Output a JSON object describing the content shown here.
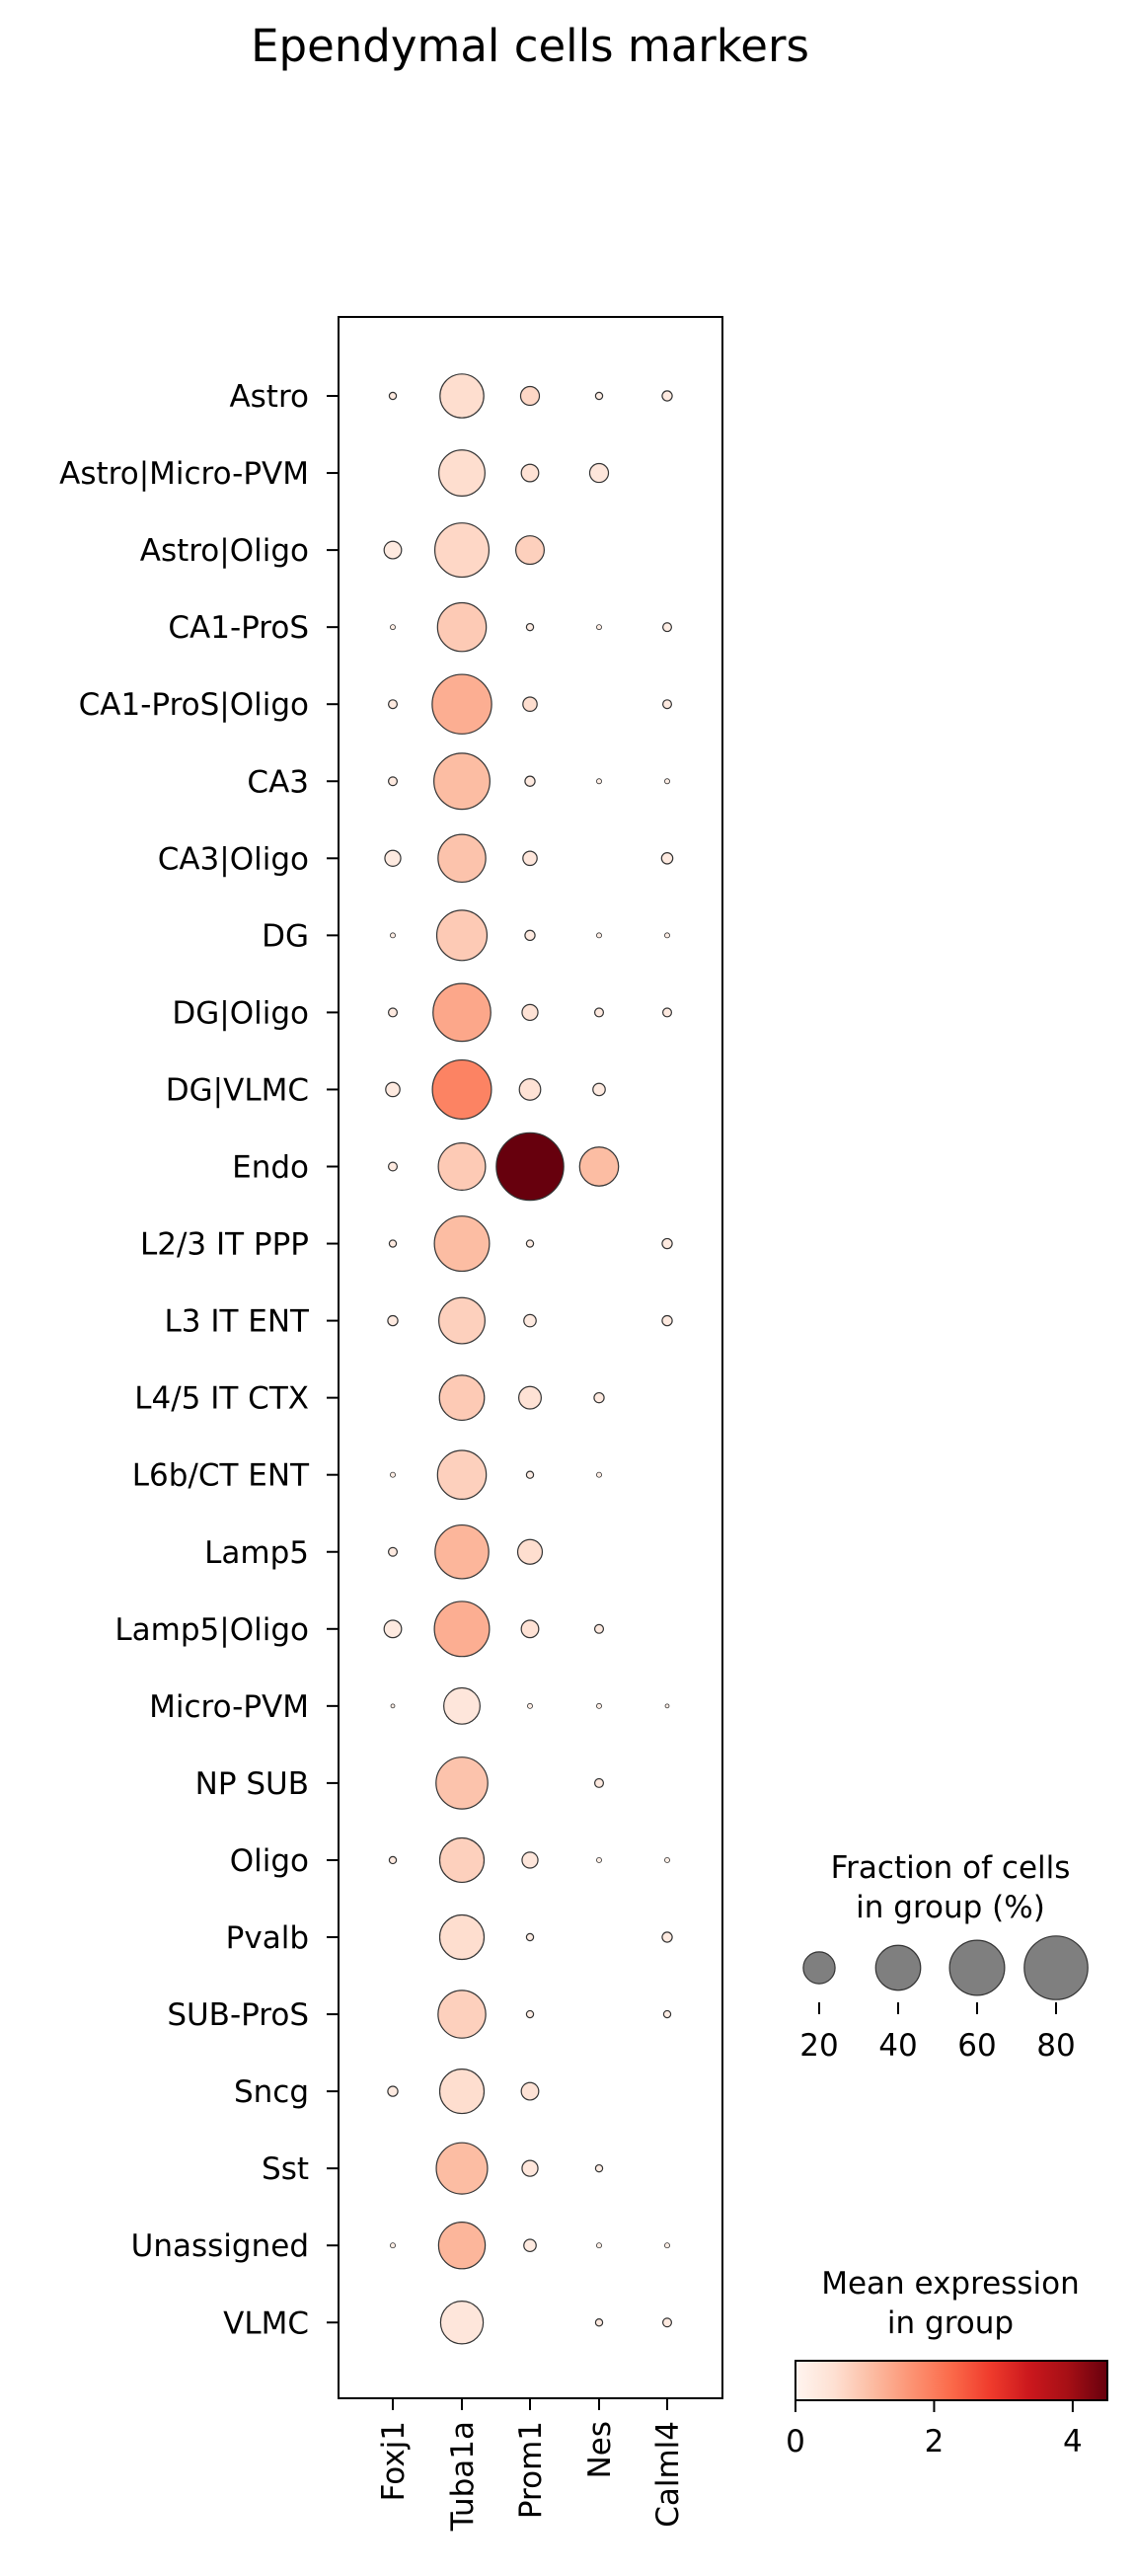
{
  "chart_data": {
    "type": "dotplot",
    "title": "Ependymal cells markers",
    "genes": [
      "Foxj1",
      "Tuba1a",
      "Prom1",
      "Nes",
      "Calml4"
    ],
    "groups": [
      "Astro",
      "Astro|Micro-PVM",
      "Astro|Oligo",
      "CA1-ProS",
      "CA1-ProS|Oligo",
      "CA3",
      "CA3|Oligo",
      "DG",
      "DG|Oligo",
      "DG|VLMC",
      "Endo",
      "L2/3 IT PPP",
      "L3 IT ENT",
      "L4/5 IT CTX",
      "L6b/CT ENT",
      "Lamp5",
      "Lamp5|Oligo",
      "Micro-PVM",
      "NP SUB",
      "Oligo",
      "Pvalb",
      "SUB-ProS",
      "Sncg",
      "Sst",
      "Unassigned",
      "VLMC"
    ],
    "fraction_pct": [
      [
        1,
        38,
        7,
        1,
        2
      ],
      [
        0,
        42,
        6,
        7,
        0
      ],
      [
        6,
        58,
        16,
        0,
        0
      ],
      [
        0.5,
        47,
        1,
        0.5,
        1.5
      ],
      [
        1.5,
        70,
        4,
        0,
        1.5
      ],
      [
        1.5,
        62,
        2,
        0.5,
        0.5
      ],
      [
        5,
        45,
        4,
        0,
        2.5
      ],
      [
        0.5,
        50,
        2,
        0.5,
        0.5
      ],
      [
        1.5,
        66,
        5,
        1.5,
        1.5
      ],
      [
        4,
        69,
        9,
        3,
        0
      ],
      [
        1.5,
        44,
        90,
        30,
        0
      ],
      [
        1,
        60,
        1,
        0,
        2
      ],
      [
        2,
        42,
        3,
        0,
        2
      ],
      [
        0,
        40,
        10,
        2,
        0
      ],
      [
        0.5,
        47,
        1,
        0.5,
        0
      ],
      [
        1.5,
        57,
        12,
        0,
        0
      ],
      [
        6,
        60,
        6,
        1.5,
        0
      ],
      [
        0.3,
        26,
        0.5,
        0.5,
        0.3
      ],
      [
        0,
        53,
        0,
        1.5,
        0
      ],
      [
        1,
        39,
        5,
        0.5,
        0.5
      ],
      [
        0,
        39,
        1,
        0,
        2
      ],
      [
        0,
        45,
        1,
        0,
        1
      ],
      [
        2,
        39,
        6,
        0,
        0
      ],
      [
        0,
        52,
        5,
        1,
        0
      ],
      [
        0.5,
        43,
        3,
        0.5,
        0.5
      ],
      [
        0,
        36,
        0,
        1,
        1.5
      ]
    ],
    "mean_expression": [
      [
        0.3,
        0.6,
        0.7,
        0.2,
        0.3
      ],
      [
        0,
        0.6,
        0.5,
        0.4,
        0
      ],
      [
        0.3,
        0.7,
        0.8,
        0,
        0
      ],
      [
        0.2,
        0.9,
        0.2,
        0.2,
        0.2
      ],
      [
        0.3,
        1.3,
        0.6,
        0,
        0.3
      ],
      [
        0.3,
        1.1,
        0.3,
        0.2,
        0.2
      ],
      [
        0.3,
        1.0,
        0.4,
        0,
        0.3
      ],
      [
        0.2,
        0.9,
        0.3,
        0.2,
        0.2
      ],
      [
        0.3,
        1.4,
        0.5,
        0.3,
        0.3
      ],
      [
        0.3,
        1.9,
        0.5,
        0.3,
        0
      ],
      [
        0.3,
        0.9,
        4.5,
        1.1,
        0
      ],
      [
        0.3,
        1.1,
        0.2,
        0,
        0.3
      ],
      [
        0.3,
        0.8,
        0.3,
        0,
        0.3
      ],
      [
        0,
        0.9,
        0.5,
        0.3,
        0
      ],
      [
        0.2,
        0.8,
        0.2,
        0.2,
        0
      ],
      [
        0.3,
        1.2,
        0.6,
        0,
        0
      ],
      [
        0.3,
        1.3,
        0.5,
        0.3,
        0
      ],
      [
        0.2,
        0.4,
        0.2,
        0.2,
        0.2
      ],
      [
        0,
        1.0,
        0,
        0.3,
        0
      ],
      [
        0.3,
        0.8,
        0.4,
        0.2,
        0.2
      ],
      [
        0,
        0.6,
        0.2,
        0,
        0.3
      ],
      [
        0,
        0.8,
        0.2,
        0,
        0.2
      ],
      [
        0.3,
        0.6,
        0.5,
        0,
        0
      ],
      [
        0,
        1.1,
        0.4,
        0.2,
        0
      ],
      [
        0.2,
        1.2,
        0.3,
        0.2,
        0.2
      ],
      [
        0,
        0.4,
        0,
        0.3,
        0.3
      ]
    ],
    "size_legend": {
      "title": "Fraction of cells\nin group (%)",
      "values": [
        20,
        40,
        60,
        80
      ]
    },
    "color_legend": {
      "title": "Mean expression\nin group",
      "ticks": [
        0,
        2,
        4
      ],
      "vmin": 0,
      "vmax": 4.5,
      "colormap": "Reds"
    }
  }
}
